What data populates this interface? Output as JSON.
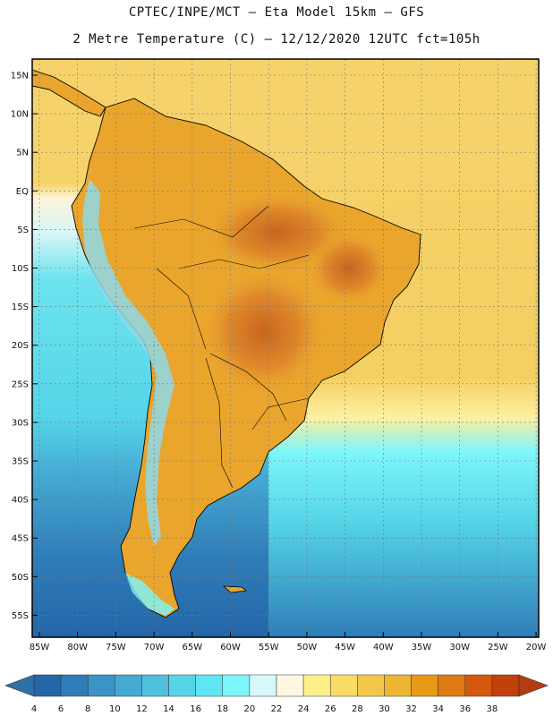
{
  "title": {
    "line1": "CPTEC/INPE/MCT –  Eta Model 15km – GFS",
    "line2": "2 Metre Temperature (C) – 12/12/2020 12UTC fct=105h"
  },
  "axes": {
    "lat_labels": [
      "15N",
      "10N",
      "5N",
      "EQ",
      "5S",
      "10S",
      "15S",
      "20S",
      "25S",
      "30S",
      "35S",
      "40S",
      "45S",
      "50S",
      "55S"
    ],
    "lon_labels": [
      "85W",
      "80W",
      "75W",
      "70W",
      "65W",
      "60W",
      "55W",
      "50W",
      "45W",
      "40W",
      "35W",
      "30W",
      "25W",
      "20W"
    ]
  },
  "colorbar": {
    "ticks": [
      "4",
      "6",
      "8",
      "10",
      "12",
      "14",
      "16",
      "18",
      "20",
      "22",
      "24",
      "26",
      "28",
      "30",
      "32",
      "34",
      "36",
      "38"
    ],
    "colors": [
      "#2466a8",
      "#2f7db8",
      "#3a94c6",
      "#45aad3",
      "#4fc0de",
      "#55d5e8",
      "#5fe6f2",
      "#7df6fb",
      "#d6f8fb",
      "#fff8e0",
      "#fdf08a",
      "#f8dc66",
      "#f3c84a",
      "#ecb532",
      "#e89a15",
      "#e07a12",
      "#d4590c",
      "#c2410a"
    ],
    "under_color": "#2f6fa8",
    "over_color": "#b33d10"
  },
  "map": {
    "ocean_tropical": "#f6d26a",
    "ocean_equator": "#fdf3d8",
    "ocean_subtropic": "#f2c64a",
    "ocean_cool": "#55d5e8",
    "ocean_cold": "#3d9ed0",
    "ocean_polar": "#2a6fb0",
    "land_hot": "#e9a22c",
    "land_very_hot": "#d9792a",
    "land_andes": "#8fd8e8",
    "coast_color": "#000000"
  }
}
